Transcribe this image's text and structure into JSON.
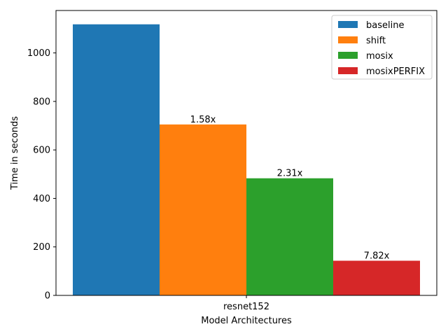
{
  "chart_data": {
    "type": "bar",
    "categories": [
      "resnet152"
    ],
    "series": [
      {
        "name": "baseline",
        "values": [
          1118
        ],
        "label": "",
        "color": "#1f77b4"
      },
      {
        "name": "shift",
        "values": [
          705
        ],
        "label": "1.58x",
        "color": "#ff7f0e"
      },
      {
        "name": "mosix",
        "values": [
          483
        ],
        "label": "2.31x",
        "color": "#2ca02c"
      },
      {
        "name": "mosixPERFIX",
        "values": [
          143
        ],
        "label": "7.82x",
        "color": "#d62728"
      }
    ],
    "xlabel": "Model Architectures",
    "ylabel": "Time in seconds",
    "ylim": [
      0,
      1175
    ],
    "yticks": [
      0,
      200,
      400,
      600,
      800,
      1000
    ],
    "legend_position": "top-right",
    "grid": false
  }
}
